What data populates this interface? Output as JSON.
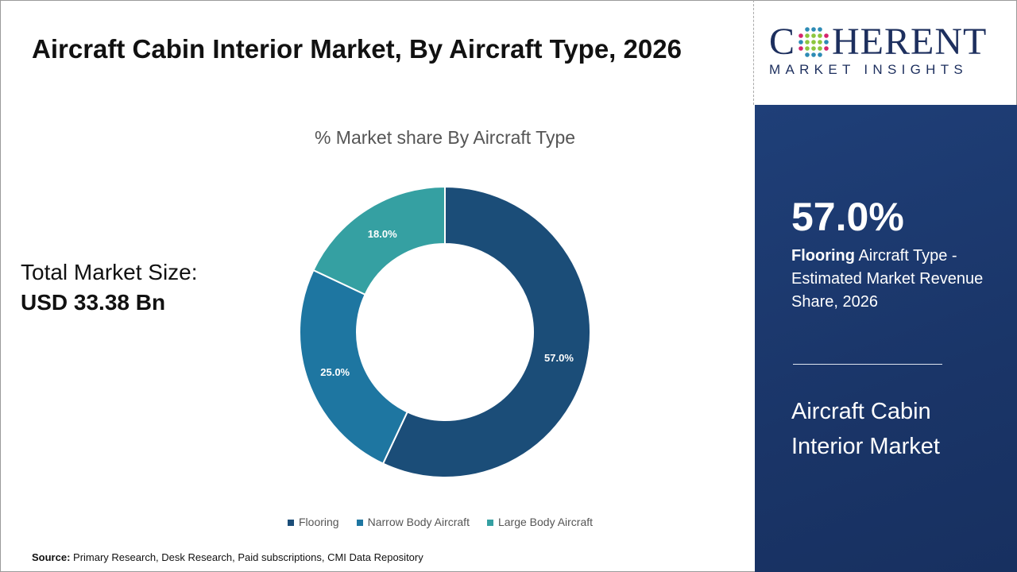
{
  "title": "Aircraft Cabin Interior Market, By Aircraft Type, 2026",
  "total_market": {
    "label": "Total Market Size:",
    "value": "USD 33.38 Bn"
  },
  "source": {
    "label": "Source:",
    "text": "Primary Research, Desk Research, Paid subscriptions, CMI Data Repository"
  },
  "logo": {
    "brand": "COHERENT",
    "tagline": "MARKET INSIGHTS"
  },
  "panel": {
    "highlight_value": "57.0%",
    "highlight_bold": "Flooring",
    "highlight_text": " Aircraft Type - Estimated Market Revenue Share, 2026",
    "market_name": "Aircraft Cabin Interior Market"
  },
  "chart_data": {
    "type": "pie",
    "variant": "donut",
    "title": "% Market share By Aircraft Type",
    "categories": [
      "Flooring",
      "Narrow Body Aircraft",
      "Large Body Aircraft"
    ],
    "values": [
      57.0,
      25.0,
      18.0
    ],
    "data_labels": [
      "57.0%",
      "25.0%",
      "18.0%"
    ],
    "colors": [
      "#1b4d78",
      "#1e76a1",
      "#35a0a2"
    ],
    "legend_position": "bottom"
  }
}
